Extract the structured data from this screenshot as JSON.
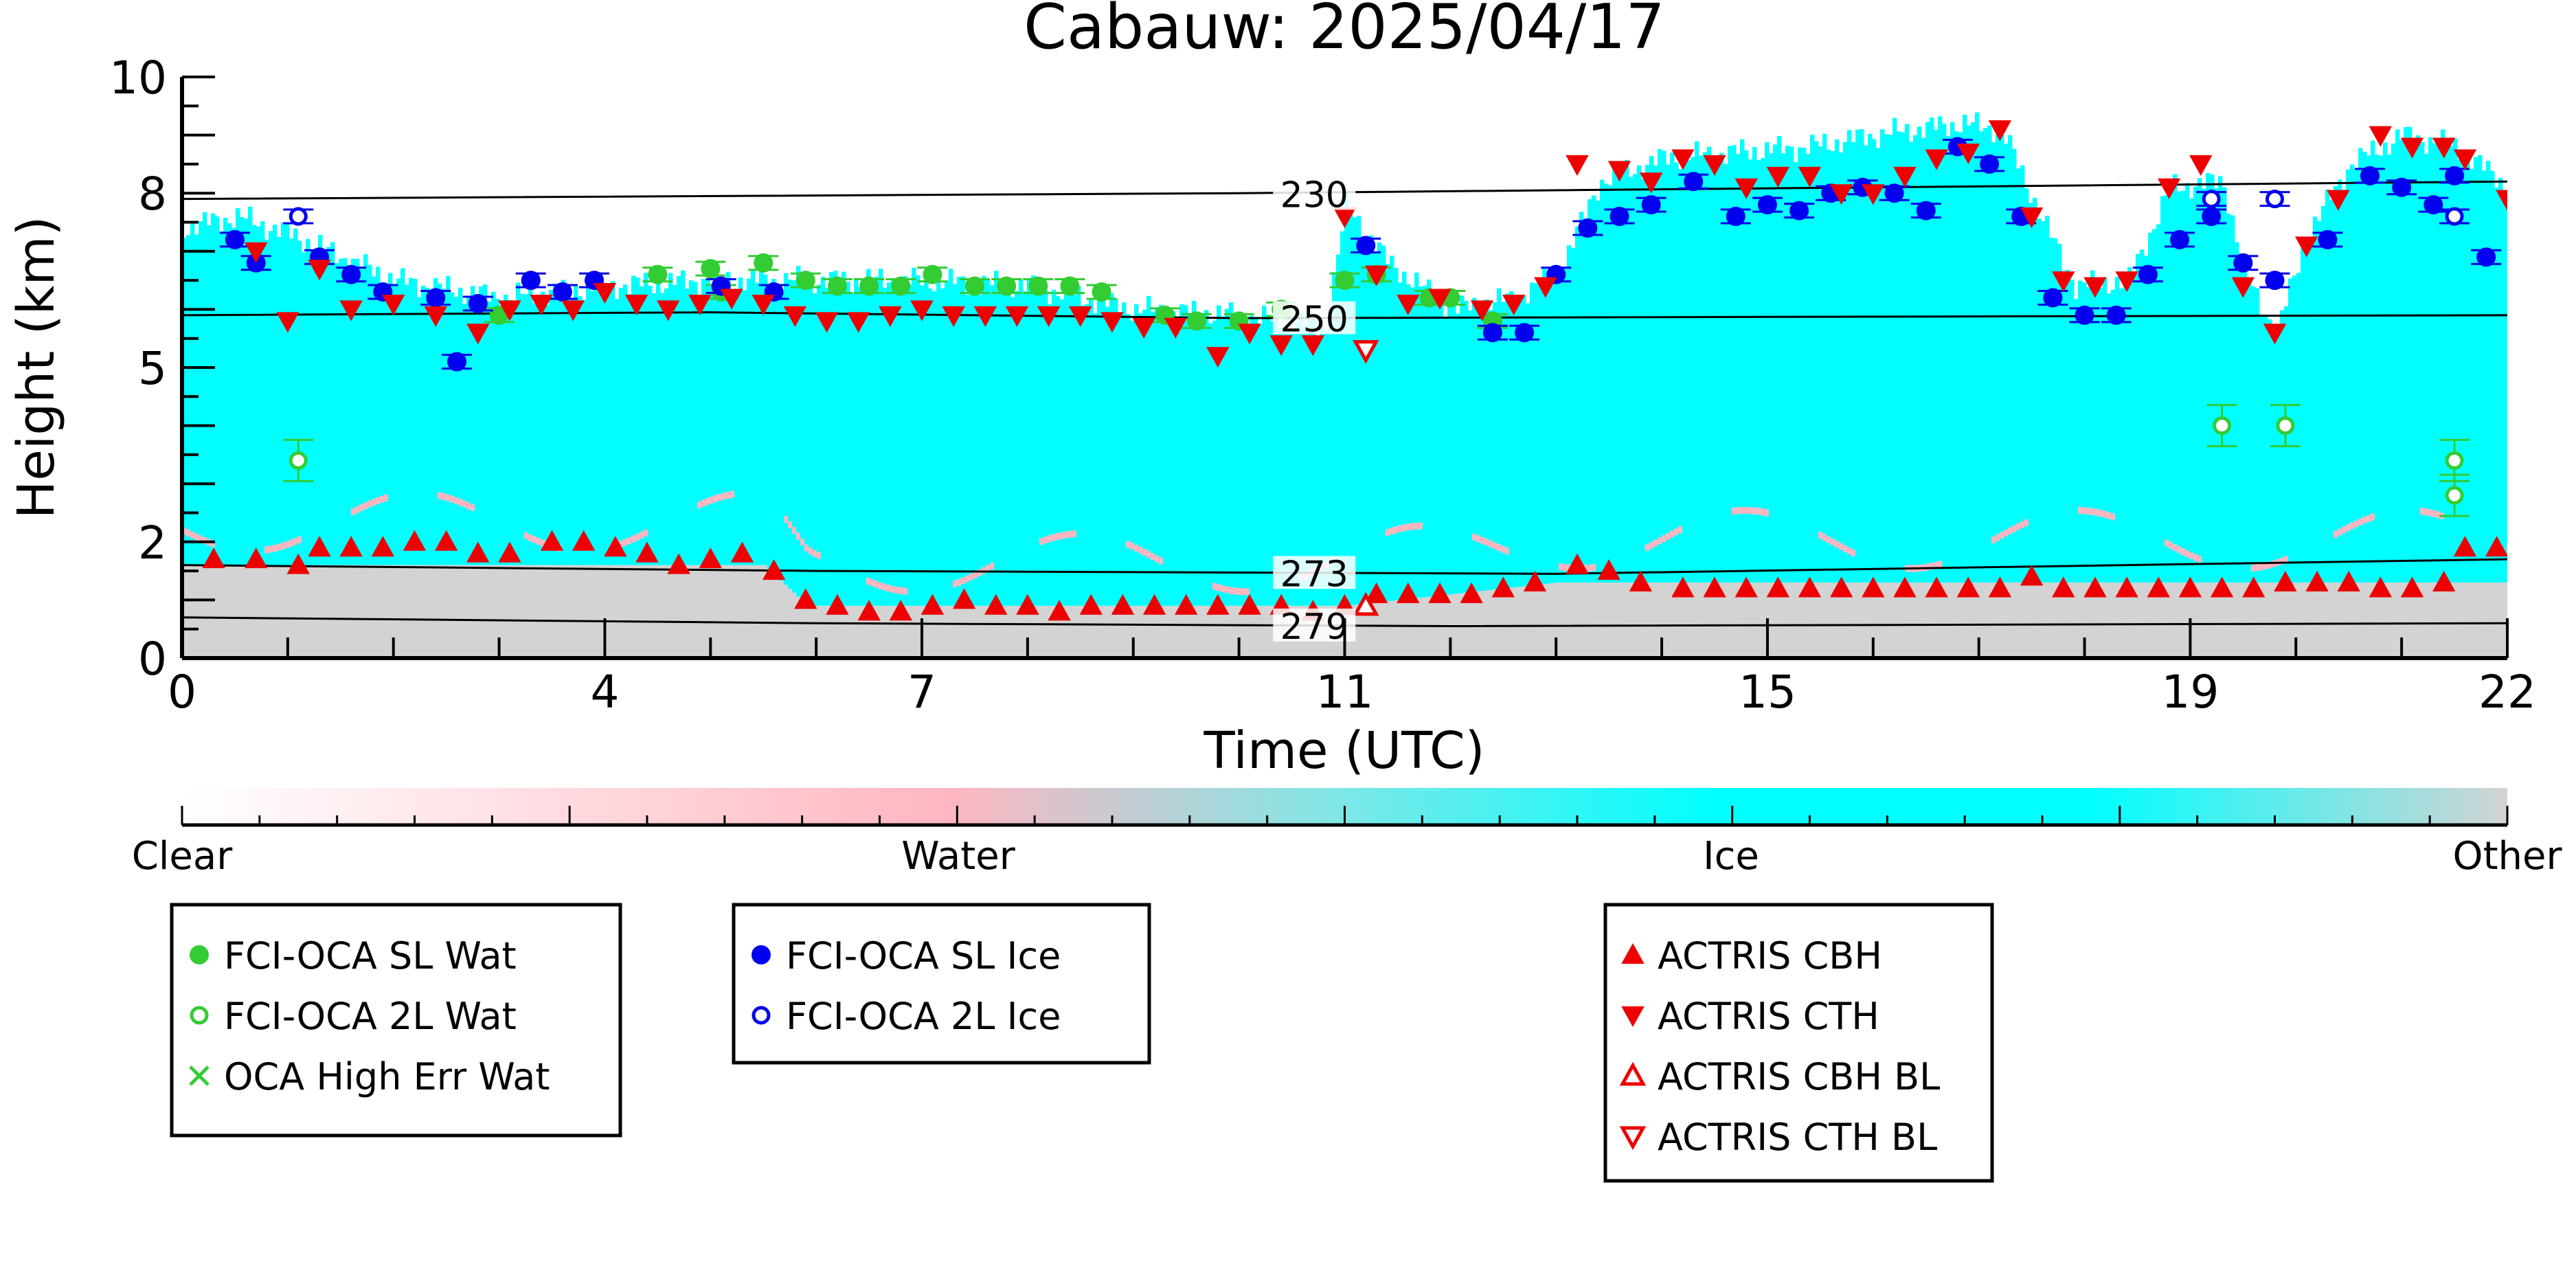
{
  "chart_data": {
    "type": "scatter",
    "title": "Cabauw: 2025/04/17",
    "xlabel": "Time (UTC)",
    "ylabel": "Height (km)",
    "xlim": [
      0,
      22
    ],
    "ylim": [
      0,
      10
    ],
    "x_ticks": [
      0,
      4,
      7,
      11,
      15,
      19,
      22
    ],
    "y_ticks": [
      0,
      2,
      5,
      8,
      10
    ],
    "x_tick_labels": [
      "0",
      "4",
      "7",
      "11",
      "15",
      "19",
      "22"
    ],
    "y_tick_labels": [
      "0",
      "2",
      "5",
      "8",
      "10"
    ],
    "background": "cloud phase curtain (Clear / Water / Ice / Other)",
    "colorbar": {
      "labels": [
        "Clear",
        "Water",
        "Ice",
        "Other"
      ],
      "colors": [
        "#ffffff",
        "#ffb6c1",
        "#00ffff",
        "#d3d3d3"
      ]
    },
    "isotherms": [
      {
        "label": "230",
        "x": [
          0,
          10,
          22
        ],
        "y": [
          7.9,
          8.0,
          8.2
        ]
      },
      {
        "label": "250",
        "x": [
          0,
          5,
          10,
          22
        ],
        "y": [
          5.9,
          5.95,
          5.85,
          5.9
        ]
      },
      {
        "label": "273",
        "x": [
          0,
          6,
          13,
          22
        ],
        "y": [
          1.6,
          1.5,
          1.45,
          1.7
        ]
      },
      {
        "label": "279",
        "x": [
          0,
          6,
          12,
          22
        ],
        "y": [
          0.7,
          0.6,
          0.55,
          0.6
        ]
      }
    ],
    "series": [
      {
        "name": "FCI-OCA SL Wat",
        "color": "#33cc33",
        "marker": "circle-filled",
        "points": [
          [
            3.0,
            5.9
          ],
          [
            4.5,
            6.6
          ],
          [
            5.1,
            6.3
          ],
          [
            5.5,
            6.8
          ],
          [
            5.0,
            6.7
          ],
          [
            5.9,
            6.5
          ],
          [
            6.2,
            6.4
          ],
          [
            6.5,
            6.4
          ],
          [
            6.8,
            6.4
          ],
          [
            7.1,
            6.6
          ],
          [
            7.5,
            6.4
          ],
          [
            7.8,
            6.4
          ],
          [
            8.1,
            6.4
          ],
          [
            8.4,
            6.4
          ],
          [
            8.7,
            6.3
          ],
          [
            9.3,
            5.9
          ],
          [
            9.6,
            5.8
          ],
          [
            10.0,
            5.8
          ],
          [
            10.4,
            6.0
          ],
          [
            11.0,
            6.5
          ],
          [
            11.3,
            6.6
          ],
          [
            12.0,
            6.2
          ],
          [
            12.4,
            5.8
          ],
          [
            11.8,
            6.2
          ]
        ]
      },
      {
        "name": "FCI-OCA 2L Wat",
        "color": "#33cc33",
        "marker": "circle-open",
        "points": [
          [
            1.1,
            3.4
          ],
          [
            19.3,
            4.0
          ],
          [
            19.9,
            4.0
          ],
          [
            21.5,
            3.4
          ],
          [
            21.5,
            2.8
          ]
        ]
      },
      {
        "name": "OCA High Err Wat",
        "color": "#33cc33",
        "marker": "x",
        "points": []
      },
      {
        "name": "FCI-OCA SL Ice",
        "color": "#0000ee",
        "marker": "circle-filled",
        "points": [
          [
            0.5,
            7.2
          ],
          [
            0.7,
            6.8
          ],
          [
            1.3,
            6.9
          ],
          [
            1.6,
            6.6
          ],
          [
            1.9,
            6.3
          ],
          [
            2.4,
            6.2
          ],
          [
            2.6,
            5.1
          ],
          [
            2.8,
            6.1
          ],
          [
            3.3,
            6.5
          ],
          [
            3.6,
            6.3
          ],
          [
            3.9,
            6.5
          ],
          [
            5.1,
            6.4
          ],
          [
            5.6,
            6.3
          ],
          [
            11.2,
            7.1
          ],
          [
            12.4,
            5.6
          ],
          [
            12.7,
            5.6
          ],
          [
            13.0,
            6.6
          ],
          [
            13.3,
            7.4
          ],
          [
            13.6,
            7.6
          ],
          [
            13.9,
            7.8
          ],
          [
            14.3,
            8.2
          ],
          [
            14.7,
            7.6
          ],
          [
            15.0,
            7.8
          ],
          [
            15.3,
            7.7
          ],
          [
            15.6,
            8.0
          ],
          [
            15.9,
            8.1
          ],
          [
            16.2,
            8.0
          ],
          [
            16.5,
            7.7
          ],
          [
            16.8,
            8.8
          ],
          [
            17.1,
            8.5
          ],
          [
            17.4,
            7.6
          ],
          [
            17.7,
            6.2
          ],
          [
            18.0,
            5.9
          ],
          [
            18.3,
            5.9
          ],
          [
            18.6,
            6.6
          ],
          [
            18.9,
            7.2
          ],
          [
            19.2,
            7.6
          ],
          [
            19.5,
            6.8
          ],
          [
            19.8,
            6.5
          ],
          [
            20.3,
            7.2
          ],
          [
            20.7,
            8.3
          ],
          [
            21.0,
            8.1
          ],
          [
            21.3,
            7.8
          ],
          [
            21.5,
            8.3
          ],
          [
            21.8,
            6.9
          ]
        ]
      },
      {
        "name": "FCI-OCA 2L Ice",
        "color": "#0000ee",
        "marker": "circle-open",
        "points": [
          [
            1.1,
            7.6
          ],
          [
            19.2,
            7.9
          ],
          [
            19.8,
            7.9
          ],
          [
            21.5,
            7.6
          ]
        ]
      },
      {
        "name": "ACTRIS CBH",
        "color": "#ee0000",
        "marker": "triangle-up-filled",
        "points": [
          [
            0.3,
            1.7
          ],
          [
            0.7,
            1.7
          ],
          [
            1.1,
            1.6
          ],
          [
            1.3,
            1.9
          ],
          [
            1.6,
            1.9
          ],
          [
            1.9,
            1.9
          ],
          [
            2.2,
            2.0
          ],
          [
            2.5,
            2.0
          ],
          [
            2.8,
            1.8
          ],
          [
            3.1,
            1.8
          ],
          [
            3.5,
            2.0
          ],
          [
            3.8,
            2.0
          ],
          [
            4.1,
            1.9
          ],
          [
            4.4,
            1.8
          ],
          [
            4.7,
            1.6
          ],
          [
            5.0,
            1.7
          ],
          [
            5.3,
            1.8
          ],
          [
            5.6,
            1.5
          ],
          [
            5.9,
            1.0
          ],
          [
            6.2,
            0.9
          ],
          [
            6.5,
            0.8
          ],
          [
            6.8,
            0.8
          ],
          [
            7.1,
            0.9
          ],
          [
            7.4,
            1.0
          ],
          [
            7.7,
            0.9
          ],
          [
            8.0,
            0.9
          ],
          [
            8.3,
            0.8
          ],
          [
            8.6,
            0.9
          ],
          [
            8.9,
            0.9
          ],
          [
            9.2,
            0.9
          ],
          [
            9.5,
            0.9
          ],
          [
            9.8,
            0.9
          ],
          [
            10.1,
            0.9
          ],
          [
            10.4,
            0.9
          ],
          [
            10.7,
            0.8
          ],
          [
            11.0,
            0.9
          ],
          [
            11.3,
            1.1
          ],
          [
            11.6,
            1.1
          ],
          [
            11.9,
            1.1
          ],
          [
            12.2,
            1.1
          ],
          [
            12.5,
            1.2
          ],
          [
            12.8,
            1.3
          ],
          [
            13.2,
            1.6
          ],
          [
            13.5,
            1.5
          ],
          [
            13.8,
            1.3
          ],
          [
            14.2,
            1.2
          ],
          [
            14.5,
            1.2
          ],
          [
            14.8,
            1.2
          ],
          [
            15.1,
            1.2
          ],
          [
            15.4,
            1.2
          ],
          [
            15.7,
            1.2
          ],
          [
            16.0,
            1.2
          ],
          [
            16.3,
            1.2
          ],
          [
            16.6,
            1.2
          ],
          [
            16.9,
            1.2
          ],
          [
            17.2,
            1.2
          ],
          [
            17.5,
            1.4
          ],
          [
            17.8,
            1.2
          ],
          [
            18.1,
            1.2
          ],
          [
            18.4,
            1.2
          ],
          [
            18.7,
            1.2
          ],
          [
            19.0,
            1.2
          ],
          [
            19.3,
            1.2
          ],
          [
            19.6,
            1.2
          ],
          [
            19.9,
            1.3
          ],
          [
            20.2,
            1.3
          ],
          [
            20.5,
            1.3
          ],
          [
            20.8,
            1.2
          ],
          [
            21.1,
            1.2
          ],
          [
            21.4,
            1.3
          ],
          [
            21.6,
            1.9
          ],
          [
            21.9,
            1.9
          ]
        ]
      },
      {
        "name": "ACTRIS CTH",
        "color": "#ee0000",
        "marker": "triangle-down-filled",
        "points": [
          [
            0.7,
            7.0
          ],
          [
            1.0,
            5.8
          ],
          [
            1.3,
            6.7
          ],
          [
            1.6,
            6.0
          ],
          [
            2.0,
            6.1
          ],
          [
            2.4,
            5.9
          ],
          [
            2.8,
            5.6
          ],
          [
            3.1,
            6.0
          ],
          [
            3.4,
            6.1
          ],
          [
            3.7,
            6.0
          ],
          [
            4.0,
            6.3
          ],
          [
            4.3,
            6.1
          ],
          [
            4.6,
            6.0
          ],
          [
            4.9,
            6.1
          ],
          [
            5.2,
            6.2
          ],
          [
            5.5,
            6.1
          ],
          [
            5.8,
            5.9
          ],
          [
            6.1,
            5.8
          ],
          [
            6.4,
            5.8
          ],
          [
            6.7,
            5.9
          ],
          [
            7.0,
            6.0
          ],
          [
            7.3,
            5.9
          ],
          [
            7.6,
            5.9
          ],
          [
            7.9,
            5.9
          ],
          [
            8.2,
            5.9
          ],
          [
            8.5,
            5.9
          ],
          [
            8.8,
            5.8
          ],
          [
            9.1,
            5.7
          ],
          [
            9.4,
            5.7
          ],
          [
            9.8,
            5.2
          ],
          [
            10.1,
            5.6
          ],
          [
            10.4,
            5.4
          ],
          [
            10.7,
            5.4
          ],
          [
            11.0,
            7.6
          ],
          [
            11.3,
            6.6
          ],
          [
            11.6,
            6.1
          ],
          [
            11.9,
            6.2
          ],
          [
            12.3,
            6.0
          ],
          [
            12.6,
            6.1
          ],
          [
            12.9,
            6.4
          ],
          [
            13.2,
            8.5
          ],
          [
            13.6,
            8.4
          ],
          [
            13.9,
            8.2
          ],
          [
            14.2,
            8.6
          ],
          [
            14.5,
            8.5
          ],
          [
            14.8,
            8.1
          ],
          [
            15.1,
            8.3
          ],
          [
            15.4,
            8.3
          ],
          [
            15.7,
            8.0
          ],
          [
            16.0,
            8.0
          ],
          [
            16.3,
            8.3
          ],
          [
            16.6,
            8.6
          ],
          [
            16.9,
            8.7
          ],
          [
            17.2,
            9.1
          ],
          [
            17.5,
            7.6
          ],
          [
            17.8,
            6.5
          ],
          [
            18.1,
            6.4
          ],
          [
            18.4,
            6.5
          ],
          [
            18.8,
            8.1
          ],
          [
            19.1,
            8.5
          ],
          [
            19.5,
            6.4
          ],
          [
            19.8,
            5.6
          ],
          [
            20.1,
            7.1
          ],
          [
            20.4,
            7.9
          ],
          [
            20.8,
            9.0
          ],
          [
            21.1,
            8.8
          ],
          [
            21.4,
            8.8
          ],
          [
            21.6,
            8.6
          ],
          [
            22.0,
            7.9
          ]
        ]
      },
      {
        "name": "ACTRIS CBH BL",
        "color": "#ee0000",
        "marker": "triangle-up-open",
        "points": [
          [
            11.2,
            0.9
          ]
        ]
      },
      {
        "name": "ACTRIS CTH BL",
        "color": "#ee0000",
        "marker": "triangle-down-open",
        "points": [
          [
            11.2,
            5.3
          ]
        ]
      }
    ],
    "legend_boxes": [
      [
        "FCI-OCA SL Wat",
        "FCI-OCA 2L Wat",
        "OCA High Err Wat"
      ],
      [
        "FCI-OCA SL Ice",
        "FCI-OCA 2L Ice"
      ],
      [
        "ACTRIS CBH",
        "ACTRIS CTH",
        "ACTRIS CBH BL",
        "ACTRIS CTH BL"
      ]
    ],
    "legend_placement": "below",
    "grid": false
  }
}
